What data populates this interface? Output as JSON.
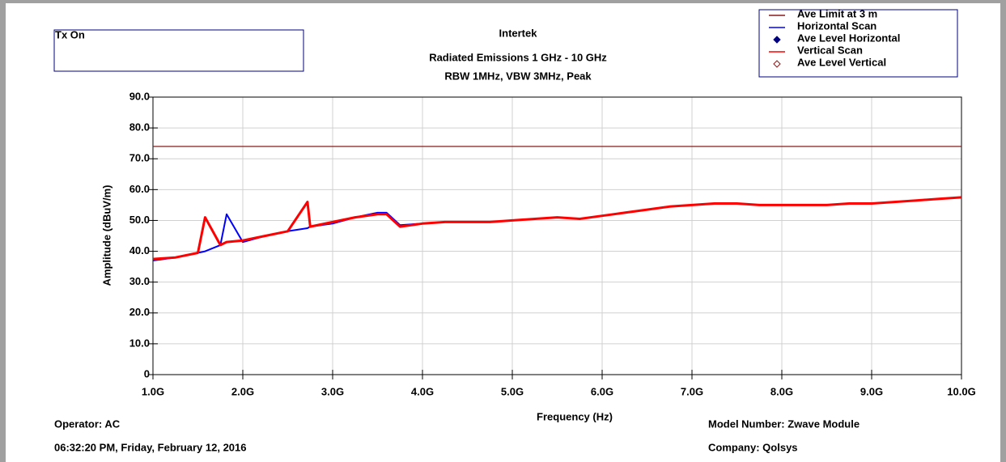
{
  "chart_data": {
    "type": "line",
    "title": "Intertek",
    "subtitle": [
      "Radiated Emissions 1 GHz - 10 GHz",
      "RBW 1MHz, VBW 3MHz, Peak"
    ],
    "note_box": "Tx On",
    "xlabel": "Frequency (Hz)",
    "ylabel": "Amplitude (dBuV/m)",
    "footer": {
      "operator": "Operator: AC",
      "date": "06:32:20 PM, Friday, February 12, 2016",
      "model": "Model Number: Zwave Module",
      "company": "Company: Qolsys"
    },
    "x": [
      1.0,
      1.25,
      1.5,
      1.58,
      1.75,
      1.82,
      2.0,
      2.25,
      2.5,
      2.72,
      2.75,
      3.0,
      3.25,
      3.5,
      3.6,
      3.75,
      4.0,
      4.25,
      4.5,
      4.75,
      5.0,
      5.25,
      5.5,
      5.75,
      6.0,
      6.25,
      6.5,
      6.75,
      7.0,
      7.25,
      7.5,
      7.75,
      8.0,
      8.25,
      8.5,
      8.75,
      9.0,
      9.25,
      9.5,
      9.75,
      10.0
    ],
    "series": [
      {
        "name": "Ave Limit at 3 m",
        "color": "#8b1a1a",
        "style": "line",
        "values": [
          74,
          74,
          74,
          74,
          74,
          74,
          74,
          74,
          74,
          74,
          74,
          74,
          74,
          74,
          74,
          74,
          74,
          74,
          74,
          74,
          74,
          74,
          74,
          74,
          74,
          74,
          74,
          74,
          74,
          74,
          74,
          74,
          74,
          74,
          74,
          74,
          74,
          74,
          74,
          74,
          74
        ]
      },
      {
        "name": "Horizontal Scan",
        "color": "#0000ff",
        "style": "line",
        "values": [
          37,
          38,
          39.5,
          40,
          42,
          52,
          43,
          45,
          46.5,
          47.5,
          48,
          49,
          51,
          52.5,
          52.5,
          48.5,
          49,
          49.5,
          49.5,
          49.5,
          50,
          50.5,
          51,
          50.5,
          51.5,
          52.5,
          53.5,
          54.5,
          55,
          55.5,
          55.5,
          55,
          55,
          55,
          55,
          55.5,
          55.5,
          56,
          56.5,
          57,
          57.5
        ]
      },
      {
        "name": "Ave Level Horizontal",
        "color": "#000080",
        "style": "diamond-filled",
        "values": [
          null,
          null,
          null,
          null,
          null,
          null,
          null,
          null,
          null,
          null,
          null,
          null,
          null,
          null,
          null,
          null,
          null,
          null,
          null,
          null,
          null,
          null,
          null,
          null,
          null,
          null,
          null,
          null,
          null,
          null,
          null,
          null,
          null,
          null,
          null,
          null,
          null,
          null,
          null,
          null,
          null
        ]
      },
      {
        "name": "Vertical Scan",
        "color": "#ff0000",
        "style": "line",
        "values": [
          37.5,
          38,
          39.5,
          51,
          42,
          43,
          43.5,
          45,
          46.5,
          56,
          48,
          49.5,
          51,
          52,
          52,
          48,
          49,
          49.5,
          49.5,
          49.5,
          50,
          50.5,
          51,
          50.5,
          51.5,
          52.5,
          53.5,
          54.5,
          55,
          55.5,
          55.5,
          55,
          55,
          55,
          55,
          55.5,
          55.5,
          56,
          56.5,
          57,
          57.5
        ]
      },
      {
        "name": "Ave Level Vertical",
        "color": "#8b1a1a",
        "style": "diamond-open",
        "values": [
          null,
          null,
          null,
          null,
          null,
          null,
          null,
          null,
          null,
          null,
          null,
          null,
          null,
          null,
          null,
          null,
          null,
          null,
          null,
          null,
          null,
          null,
          null,
          null,
          null,
          null,
          null,
          null,
          null,
          null,
          null,
          null,
          null,
          null,
          null,
          null,
          null,
          null,
          null,
          null,
          null
        ]
      }
    ],
    "xlim": [
      1,
      10
    ],
    "xticks": [
      {
        "value": 1,
        "label": "1.0G"
      },
      {
        "value": 2,
        "label": "2.0G"
      },
      {
        "value": 3,
        "label": "3.0G"
      },
      {
        "value": 4,
        "label": "4.0G"
      },
      {
        "value": 5,
        "label": "5.0G"
      },
      {
        "value": 6,
        "label": "6.0G"
      },
      {
        "value": 7,
        "label": "7.0G"
      },
      {
        "value": 8,
        "label": "8.0G"
      },
      {
        "value": 9,
        "label": "9.0G"
      },
      {
        "value": 10,
        "label": "10.0G"
      }
    ],
    "ylim": [
      0,
      90
    ],
    "yticks": [
      0,
      {
        "value": 10,
        "label": "10.0"
      },
      {
        "value": 20,
        "label": "20.0"
      },
      {
        "value": 30,
        "label": "30.0"
      },
      {
        "value": 40,
        "label": "40.0"
      },
      {
        "value": 50,
        "label": "50.0"
      },
      {
        "value": 60,
        "label": "60.0"
      },
      {
        "value": 70,
        "label": "70.0"
      },
      {
        "value": 80,
        "label": "80.0"
      },
      {
        "value": 90,
        "label": "90.0"
      }
    ],
    "grid": true,
    "legend": "upper right"
  }
}
